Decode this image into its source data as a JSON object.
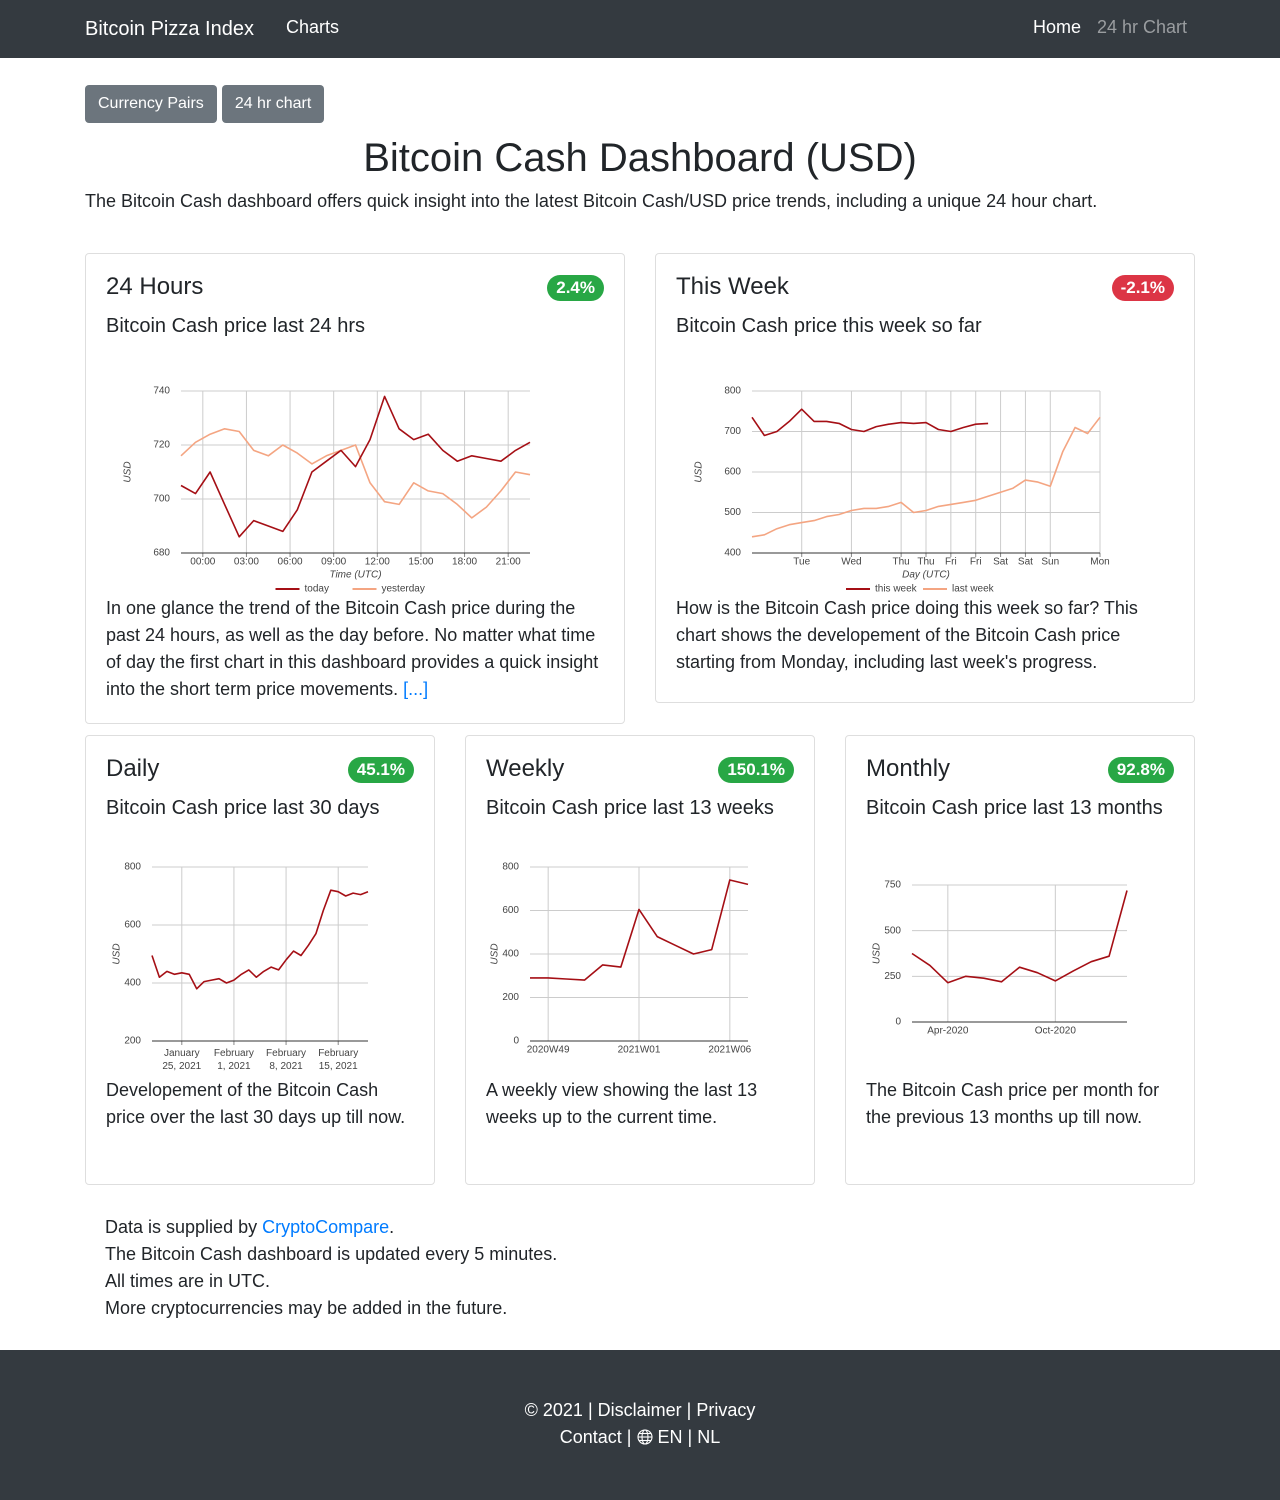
{
  "navbar": {
    "brand": "Bitcoin Pizza Index",
    "links": [
      "Charts"
    ],
    "right_links": [
      "Home",
      "24 hr Chart"
    ]
  },
  "buttons": [
    "Currency Pairs",
    "24 hr chart"
  ],
  "header": {
    "title": "Bitcoin Cash Dashboard (USD)",
    "intro": "The Bitcoin Cash dashboard offers quick insight into the latest Bitcoin Cash/USD price trends, including a unique 24 hour chart."
  },
  "cards": [
    {
      "title": "24 Hours",
      "badge": "2.4%",
      "subtitle": "Bitcoin Cash price last 24 hrs",
      "text": "In one glance the trend of the Bitcoin Cash price during the past 24 hours, as well as the day before. No matter what time of day the first chart in this dashboard provides a quick insight into the short term price movements.",
      "more": "[...]"
    },
    {
      "title": "This Week",
      "badge": "-2.1%",
      "subtitle": "Bitcoin Cash price this week so far",
      "text": "How is the Bitcoin Cash price doing this week so far? This chart shows the developement of the Bitcoin Cash price starting from Monday, including last week's progress."
    },
    {
      "title": "Daily",
      "badge": "45.1%",
      "subtitle": "Bitcoin Cash price last 30 days",
      "text": "Developement of the Bitcoin Cash price over the last 30 days up till now."
    },
    {
      "title": "Weekly",
      "badge": "150.1%",
      "subtitle": "Bitcoin Cash price last 13 weeks",
      "text": "A weekly view showing the last 13 weeks up to the current time."
    },
    {
      "title": "Monthly",
      "badge": "92.8%",
      "subtitle": "Bitcoin Cash price last 13 months",
      "text": "The Bitcoin Cash price per month for the previous 13 months up till now."
    }
  ],
  "notes": {
    "source_prefix": "Data is supplied by",
    "source_link": "CryptoCompare",
    "source_suffix": ".",
    "lines": [
      "The Bitcoin Cash dashboard is updated every 5 minutes.",
      "All times are in UTC.",
      "More cryptocurrencies may be added in the future."
    ]
  },
  "footer": {
    "separator": "|",
    "line1": [
      "© 2021",
      "Disclaimer",
      "Privacy"
    ],
    "line2": [
      "Contact",
      "EN",
      "NL"
    ]
  },
  "chart_data": [
    {
      "type": "line",
      "y_label": "USD",
      "x_label": "Time (UTC)",
      "x": [
        -1.5,
        -0.5,
        0.5,
        1.5,
        2.5,
        3.5,
        4.5,
        5.5,
        6.5,
        7.5,
        8.5,
        9.5,
        10.5,
        11.5,
        12.5,
        13.5,
        14.5,
        15.5,
        16.5,
        17.5,
        18.5,
        19.5,
        20.5,
        21.5,
        22.5
      ],
      "series": [
        {
          "name": "today",
          "color": "#a50f15",
          "values": [
            705,
            702,
            710,
            698,
            686,
            692,
            690,
            688,
            696,
            710,
            714,
            718,
            712,
            722,
            738,
            726,
            722,
            724,
            718,
            714,
            716,
            715,
            714,
            718,
            721
          ]
        },
        {
          "name": "yesterday",
          "color": "#f4a582",
          "values": [
            716,
            721,
            724,
            726,
            725,
            718,
            716,
            720,
            717,
            713,
            716,
            718,
            720,
            706,
            699,
            698,
            706,
            703,
            702,
            698,
            693,
            697,
            703,
            710,
            709
          ]
        }
      ],
      "xlim": [
        -1.5,
        22.5
      ],
      "xticks": [
        {
          "value": 0,
          "label": "00:00"
        },
        {
          "value": 3,
          "label": "03:00"
        },
        {
          "value": 6,
          "label": "06:00"
        },
        {
          "value": 9,
          "label": "09:00"
        },
        {
          "value": 12,
          "label": "12:00"
        },
        {
          "value": 15,
          "label": "15:00"
        },
        {
          "value": 18,
          "label": "18:00"
        },
        {
          "value": 21,
          "label": "21:00"
        }
      ],
      "ylim": [
        680,
        740
      ],
      "yticks": [
        680,
        700,
        720,
        740
      ],
      "grid": true,
      "legend": "bottom"
    },
    {
      "type": "line",
      "y_label": "USD",
      "x_label": "Day (UTC)",
      "x": [
        0,
        0.25,
        0.5,
        0.75,
        1,
        1.25,
        1.5,
        1.75,
        2,
        2.25,
        2.5,
        2.75,
        3,
        3.25,
        3.5,
        3.75,
        4,
        4.25,
        4.5,
        4.75,
        5,
        5.25,
        5.5,
        5.75,
        6,
        6.25,
        6.5,
        6.75,
        7
      ],
      "series": [
        {
          "name": "this week",
          "color": "#a50f15",
          "values": [
            735,
            690,
            700,
            725,
            755,
            725,
            725,
            720,
            705,
            700,
            712,
            718,
            722,
            720,
            722,
            705,
            700,
            710,
            718,
            720,
            null,
            null,
            null,
            null,
            null,
            null,
            null,
            null,
            null
          ]
        },
        {
          "name": "last week",
          "color": "#f4a582",
          "values": [
            440,
            445,
            460,
            470,
            475,
            480,
            490,
            495,
            505,
            510,
            510,
            515,
            525,
            500,
            505,
            515,
            520,
            525,
            530,
            540,
            550,
            560,
            580,
            575,
            565,
            650,
            710,
            695,
            735
          ]
        }
      ],
      "xlim": [
        0,
        7
      ],
      "xticks": [
        {
          "value": 1,
          "label": "Tue"
        },
        {
          "value": 2,
          "label": "Wed"
        },
        {
          "value": 3,
          "label": "Thu"
        },
        {
          "value": 3.5,
          "label": "Thu"
        },
        {
          "value": 4,
          "label": "Fri"
        },
        {
          "value": 4.5,
          "label": "Fri"
        },
        {
          "value": 5,
          "label": "Sat"
        },
        {
          "value": 5.5,
          "label": "Sat"
        },
        {
          "value": 6,
          "label": "Sun"
        },
        {
          "value": 7,
          "label": "Mon"
        }
      ],
      "ylim": [
        400,
        800
      ],
      "yticks": [
        400,
        500,
        600,
        700,
        800
      ],
      "grid": true,
      "legend": "bottom"
    },
    {
      "type": "line",
      "y_label": "USD",
      "color": "#a50f15",
      "x": [
        "2021-01-21",
        "2021-01-22",
        "2021-01-23",
        "2021-01-24",
        "2021-01-25",
        "2021-01-26",
        "2021-01-27",
        "2021-01-28",
        "2021-01-29",
        "2021-01-30",
        "2021-01-31",
        "2021-02-01",
        "2021-02-02",
        "2021-02-03",
        "2021-02-04",
        "2021-02-05",
        "2021-02-06",
        "2021-02-07",
        "2021-02-08",
        "2021-02-09",
        "2021-02-10",
        "2021-02-11",
        "2021-02-12",
        "2021-02-13",
        "2021-02-14",
        "2021-02-15",
        "2021-02-16",
        "2021-02-17",
        "2021-02-18",
        "2021-02-19"
      ],
      "values": [
        495,
        420,
        440,
        430,
        435,
        430,
        380,
        405,
        410,
        415,
        400,
        410,
        430,
        445,
        420,
        440,
        455,
        445,
        480,
        510,
        495,
        530,
        570,
        650,
        720,
        715,
        700,
        710,
        705,
        715
      ],
      "xlim": [
        "2021-01-21",
        "2021-02-19"
      ],
      "xticks": [
        {
          "value": "2021-01-25",
          "label": "January 25, 2021"
        },
        {
          "value": "2021-02-01",
          "label": "February 1, 2021"
        },
        {
          "value": "2021-02-08",
          "label": "February 8, 2021"
        },
        {
          "value": "2021-02-15",
          "label": "February 15, 2021"
        }
      ],
      "ylim": [
        200,
        800
      ],
      "yticks": [
        200,
        400,
        600,
        800
      ],
      "grid": true
    },
    {
      "type": "line",
      "y_label": "USD",
      "color": "#a50f15",
      "categories": [
        null,
        "2020W49",
        null,
        null,
        null,
        null,
        "2021W01",
        null,
        null,
        null,
        null,
        "2021W06",
        null
      ],
      "values": [
        290,
        290,
        285,
        280,
        350,
        340,
        605,
        480,
        440,
        400,
        420,
        740,
        720
      ],
      "ylim": [
        0,
        800
      ],
      "yticks": [
        0,
        200,
        400,
        600,
        800
      ],
      "grid": true
    },
    {
      "type": "line",
      "y_label": "USD",
      "color": "#a50f15",
      "categories": [
        null,
        null,
        "Apr-2020",
        null,
        null,
        null,
        null,
        null,
        "Oct-2020",
        null,
        null,
        null,
        null
      ],
      "values": [
        375,
        310,
        215,
        250,
        240,
        220,
        300,
        270,
        225,
        280,
        330,
        360,
        720
      ],
      "ylim": [
        0,
        750
      ],
      "yticks": [
        0,
        250,
        500,
        750
      ],
      "grid": true
    }
  ]
}
